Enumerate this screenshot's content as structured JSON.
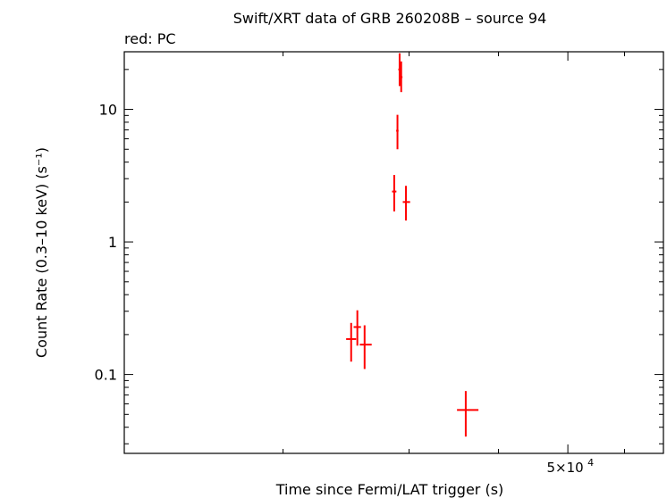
{
  "chart_data": {
    "type": "scatter",
    "title": "Swift/XRT data of GRB 260208B – source 94",
    "subtitle": "red: PC",
    "xlabel": "Time since Fermi/LAT trigger (s)",
    "ylabel": "Count Rate (0.3–10 keV) (s⁻¹)",
    "x_scale": "log",
    "y_scale": "log",
    "xlim": [
      12000,
      68000
    ],
    "ylim": [
      0.0254,
      27.2
    ],
    "x_tick_labels": [
      {
        "value": 50000,
        "mantissa": "5×10",
        "exponent": "4"
      }
    ],
    "x_minor_ticks": [
      20000,
      30000,
      40000,
      60000
    ],
    "y_ticks": [
      {
        "value": 0.1,
        "label": "0.1"
      },
      {
        "value": 1,
        "label": "1"
      },
      {
        "value": 10,
        "label": "10"
      }
    ],
    "series": [
      {
        "color": "#ff0000",
        "points": [
          {
            "x": 24900,
            "xlo": 24500,
            "xhi": 25300,
            "y": 0.185,
            "ylo": 0.125,
            "yhi": 0.245
          },
          {
            "x": 25400,
            "xlo": 25100,
            "xhi": 25700,
            "y": 0.228,
            "ylo": 0.165,
            "yhi": 0.305
          },
          {
            "x": 26000,
            "xlo": 25600,
            "xhi": 26600,
            "y": 0.168,
            "ylo": 0.11,
            "yhi": 0.235
          },
          {
            "x": 28600,
            "xlo": 28400,
            "xhi": 28800,
            "y": 2.4,
            "ylo": 1.7,
            "yhi": 3.2
          },
          {
            "x": 28900,
            "xlo": 28780,
            "xhi": 29000,
            "y": 6.9,
            "ylo": 5.0,
            "yhi": 9.1
          },
          {
            "x": 29100,
            "xlo": 28980,
            "xhi": 29220,
            "y": 20.0,
            "ylo": 15.0,
            "yhi": 26.5
          },
          {
            "x": 29250,
            "xlo": 29130,
            "xhi": 29370,
            "y": 17.5,
            "ylo": 13.5,
            "yhi": 23.0
          },
          {
            "x": 29700,
            "xlo": 29400,
            "xhi": 30100,
            "y": 2.0,
            "ylo": 1.45,
            "yhi": 2.65
          },
          {
            "x": 36000,
            "xlo": 35000,
            "xhi": 37500,
            "y": 0.054,
            "ylo": 0.034,
            "yhi": 0.075
          }
        ]
      }
    ],
    "grid": false,
    "legend": "none"
  }
}
